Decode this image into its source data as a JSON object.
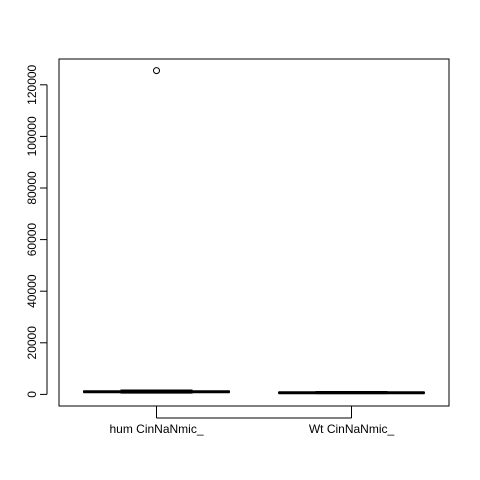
{
  "chart_data": {
    "type": "boxplot",
    "title": "",
    "xlabel": "",
    "ylabel": "",
    "ylim": [
      -4500,
      130000
    ],
    "yticks": [
      0,
      20000,
      40000,
      60000,
      80000,
      100000,
      120000
    ],
    "ytick_labels": [
      "0",
      "20000",
      "40000",
      "60000",
      "80000",
      "100000",
      "120000"
    ],
    "categories": [
      "hum CinNaNmic_",
      "Wt CinNaNmic_"
    ],
    "boxes": [
      {
        "label": "hum CinNaNmic_",
        "min": 500,
        "q1": 800,
        "median": 1000,
        "q3": 1300,
        "max": 1700,
        "outliers": [
          125500
        ]
      },
      {
        "label": "Wt CinNaNmic_",
        "min": 300,
        "q1": 500,
        "median": 650,
        "q3": 800,
        "max": 1100,
        "outliers": []
      }
    ],
    "grid": false,
    "colors": {
      "line": "#000000",
      "background": "#ffffff"
    }
  }
}
